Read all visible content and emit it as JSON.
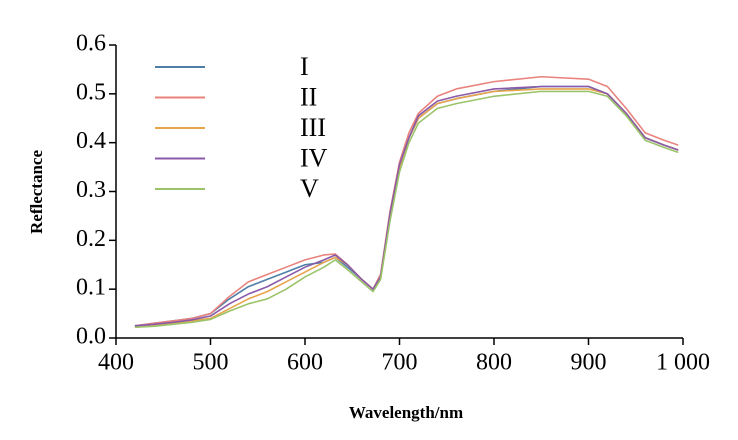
{
  "chart_data": {
    "type": "line",
    "x_label": "Wavelength/nm",
    "y_label": "Reflectance",
    "x": [
      420,
      440,
      460,
      480,
      500,
      520,
      540,
      560,
      580,
      600,
      620,
      632,
      645,
      660,
      672,
      680,
      690,
      700,
      710,
      720,
      740,
      760,
      800,
      850,
      900,
      920,
      940,
      960,
      980,
      995
    ],
    "series": [
      {
        "name": "I",
        "color": "#4f7fa8",
        "values": [
          0.025,
          0.03,
          0.035,
          0.04,
          0.05,
          0.08,
          0.105,
          0.12,
          0.135,
          0.15,
          0.155,
          0.165,
          0.145,
          0.12,
          0.1,
          0.13,
          0.25,
          0.35,
          0.41,
          0.45,
          0.48,
          0.49,
          0.505,
          0.515,
          0.515,
          0.5,
          0.46,
          0.41,
          0.395,
          0.385
        ]
      },
      {
        "name": "II",
        "color": "#e8837e",
        "values": [
          0.025,
          0.03,
          0.035,
          0.04,
          0.05,
          0.085,
          0.115,
          0.13,
          0.145,
          0.16,
          0.17,
          0.172,
          0.15,
          0.12,
          0.1,
          0.13,
          0.26,
          0.36,
          0.42,
          0.46,
          0.495,
          0.51,
          0.525,
          0.535,
          0.53,
          0.515,
          0.47,
          0.42,
          0.405,
          0.395
        ]
      },
      {
        "name": "III",
        "color": "#e8a44a",
        "values": [
          0.022,
          0.025,
          0.03,
          0.035,
          0.04,
          0.06,
          0.08,
          0.095,
          0.115,
          0.135,
          0.155,
          0.165,
          0.15,
          0.12,
          0.1,
          0.125,
          0.25,
          0.35,
          0.41,
          0.45,
          0.48,
          0.49,
          0.505,
          0.51,
          0.51,
          0.5,
          0.46,
          0.41,
          0.395,
          0.385
        ]
      },
      {
        "name": "IV",
        "color": "#8a5aa8",
        "values": [
          0.025,
          0.028,
          0.032,
          0.037,
          0.045,
          0.07,
          0.09,
          0.105,
          0.125,
          0.145,
          0.16,
          0.17,
          0.15,
          0.12,
          0.1,
          0.125,
          0.255,
          0.355,
          0.41,
          0.455,
          0.485,
          0.495,
          0.51,
          0.515,
          0.515,
          0.5,
          0.46,
          0.41,
          0.395,
          0.385
        ]
      },
      {
        "name": "V",
        "color": "#9bc46a",
        "values": [
          0.022,
          0.024,
          0.028,
          0.032,
          0.038,
          0.055,
          0.07,
          0.08,
          0.1,
          0.125,
          0.145,
          0.16,
          0.14,
          0.115,
          0.095,
          0.12,
          0.24,
          0.34,
          0.4,
          0.44,
          0.47,
          0.48,
          0.495,
          0.505,
          0.505,
          0.495,
          0.455,
          0.405,
          0.39,
          0.38
        ]
      }
    ],
    "xlim": [
      400,
      1000
    ],
    "ylim": [
      0,
      0.6
    ],
    "xticks": [
      400,
      500,
      600,
      700,
      800,
      900,
      {
        "value": 1000,
        "label": "1 000"
      }
    ],
    "yticks": [
      {
        "value": 0,
        "label": "0.0"
      },
      0.1,
      0.2,
      0.3,
      0.4,
      0.5,
      0.6
    ],
    "legend": "upper left",
    "grid": false
  }
}
